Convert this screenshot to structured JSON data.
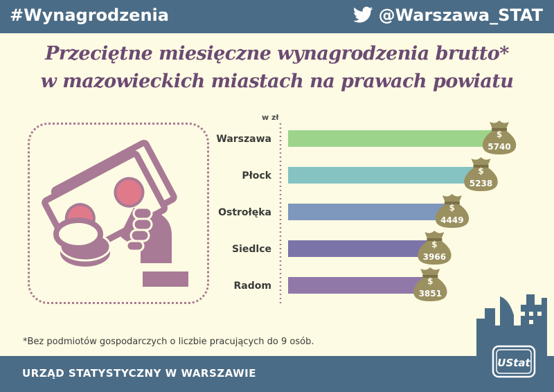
{
  "header": {
    "hashtag": "#Wynagrodzenia",
    "handle": "@Warszawa_STAT"
  },
  "title_line1": "Przeciętne miesięczne wynagrodzenia brutto*",
  "title_line2": "w mazowieckich miastach na prawach powiatu",
  "chart_data": {
    "type": "bar",
    "orientation": "horizontal",
    "unit_label": "w zł",
    "categories": [
      "Warszawa",
      "Płock",
      "Ostrołęka",
      "Siedlce",
      "Radom"
    ],
    "values": [
      5740,
      5238,
      4449,
      3966,
      3851
    ],
    "colors": [
      "#9dd48c",
      "#85c3c3",
      "#7e97bc",
      "#7b74a8",
      "#9079a8"
    ],
    "data_label_icon": "money-bag-icon"
  },
  "footnote": "*Bez podmiotów gospodarczych o liczbie pracujących do 9 osób.",
  "footer": {
    "institution": "URZĄD STATYSTYCZNY W WARSZAWIE",
    "logo_text": "UStat",
    "logo_icon": "ustat-logo-icon"
  },
  "colors": {
    "bar_background": "#4b6c86",
    "title": "#6b4a73",
    "illustration": "#a87a95",
    "accent_pink": "#e07a8a",
    "bag": "#9a9060"
  }
}
